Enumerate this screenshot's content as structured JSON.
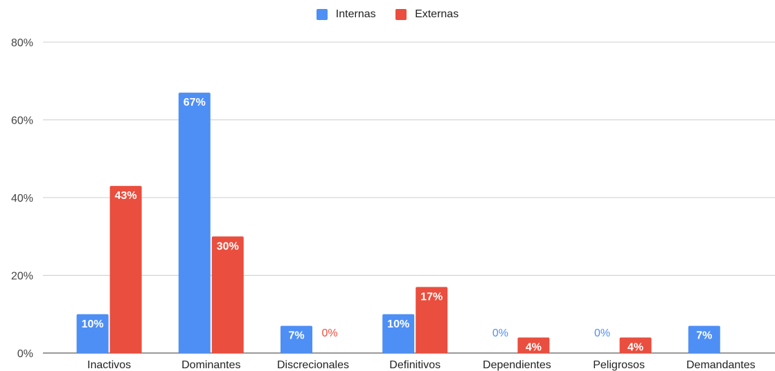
{
  "chart_data": {
    "type": "bar",
    "categories": [
      "Inactivos",
      "Dominantes",
      "Discrecionales",
      "Definitivos",
      "Dependientes",
      "Peligrosos",
      "Demandantes"
    ],
    "series": [
      {
        "name": "Internas",
        "color": "#4e8ff5",
        "values": [
          10,
          67,
          7,
          10,
          0,
          0,
          7
        ],
        "labels": [
          "10%",
          "67%",
          "7%",
          "10%",
          "0%",
          "0%",
          "7%"
        ]
      },
      {
        "name": "Externas",
        "color": "#ea4e3e",
        "values": [
          43,
          30,
          0,
          17,
          4,
          4,
          null
        ],
        "labels": [
          "43%",
          "30%",
          "0%",
          "17%",
          "4%",
          "4%",
          ""
        ]
      }
    ],
    "ylim": [
      0,
      80
    ],
    "yticks": [
      "0%",
      "20%",
      "40%",
      "60%",
      "80%"
    ],
    "grid": true,
    "legend_position": "top-center",
    "title": "",
    "xlabel": "",
    "ylabel": ""
  }
}
